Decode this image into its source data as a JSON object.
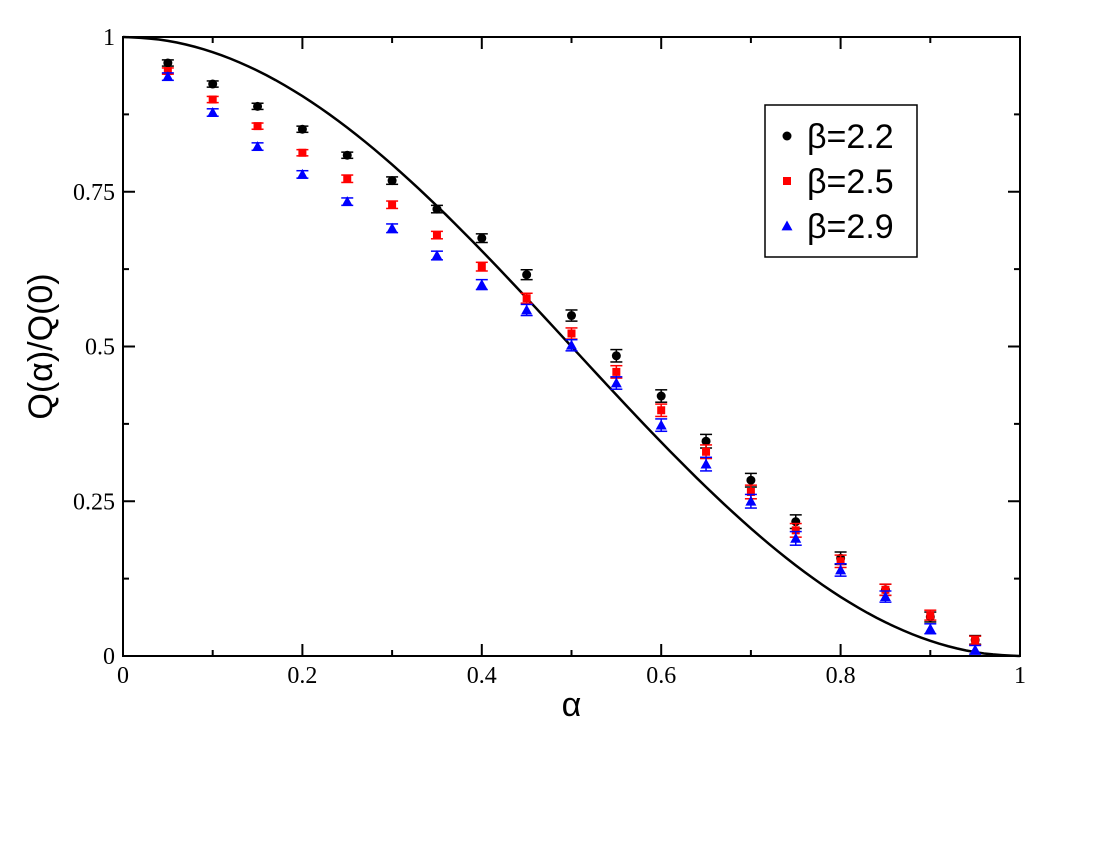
{
  "chart_data": {
    "type": "scatter",
    "xlabel": "α",
    "ylabel": "Q(α)/Q(0)",
    "xlim": [
      0,
      1
    ],
    "ylim": [
      0,
      1
    ],
    "x_ticks": [
      0,
      0.2,
      0.4,
      0.6,
      0.8,
      1
    ],
    "x_tick_labels": [
      "0",
      "0.2",
      "0.4",
      "0.6",
      "0.8",
      "1"
    ],
    "y_ticks": [
      0,
      0.25,
      0.5,
      0.75,
      1
    ],
    "y_tick_labels": [
      "0",
      "0.25",
      "0.5",
      "0.75",
      "1"
    ],
    "grid": false,
    "legend_position": "top-right",
    "x": [
      0.05,
      0.1,
      0.15,
      0.2,
      0.25,
      0.3,
      0.35,
      0.4,
      0.45,
      0.5,
      0.55,
      0.6,
      0.65,
      0.7,
      0.75,
      0.8,
      0.85,
      0.9,
      0.95
    ],
    "series": [
      {
        "name": "β=2.2",
        "marker": "circle",
        "color": "#000000",
        "values": [
          0.958,
          0.924,
          0.888,
          0.851,
          0.809,
          0.768,
          0.722,
          0.675,
          0.616,
          0.55,
          0.485,
          0.42,
          0.347,
          0.284,
          0.217,
          0.158,
          0.107,
          0.063,
          0.026
        ],
        "errors": [
          0.005,
          0.005,
          0.005,
          0.005,
          0.005,
          0.006,
          0.006,
          0.007,
          0.008,
          0.009,
          0.01,
          0.01,
          0.011,
          0.011,
          0.011,
          0.01,
          0.009,
          0.008,
          0.007
        ]
      },
      {
        "name": "β=2.5",
        "marker": "square",
        "color": "#ff0000",
        "values": [
          0.945,
          0.899,
          0.856,
          0.813,
          0.771,
          0.729,
          0.68,
          0.629,
          0.578,
          0.521,
          0.459,
          0.397,
          0.33,
          0.265,
          0.203,
          0.153,
          0.107,
          0.066,
          0.025
        ],
        "errors": [
          0.005,
          0.005,
          0.005,
          0.005,
          0.006,
          0.006,
          0.006,
          0.007,
          0.008,
          0.009,
          0.01,
          0.01,
          0.011,
          0.011,
          0.011,
          0.01,
          0.009,
          0.008,
          0.007
        ]
      },
      {
        "name": "β=2.9",
        "marker": "triangle",
        "color": "#0000ff",
        "values": [
          0.936,
          0.878,
          0.823,
          0.778,
          0.734,
          0.691,
          0.647,
          0.6,
          0.559,
          0.502,
          0.441,
          0.373,
          0.31,
          0.25,
          0.19,
          0.139,
          0.096,
          0.044,
          0.01
        ],
        "errors": [
          0.006,
          0.006,
          0.006,
          0.006,
          0.006,
          0.007,
          0.007,
          0.008,
          0.009,
          0.009,
          0.01,
          0.01,
          0.011,
          0.011,
          0.011,
          0.01,
          0.009,
          0.008,
          0.007
        ]
      }
    ],
    "curve": {
      "color": "#000000",
      "x": [
        0,
        0.05,
        0.1,
        0.15,
        0.2,
        0.25,
        0.3,
        0.35,
        0.4,
        0.45,
        0.5,
        0.55,
        0.6,
        0.65,
        0.7,
        0.75,
        0.8,
        0.85,
        0.9,
        0.95,
        1
      ],
      "y": [
        1.0,
        0.9938,
        0.9755,
        0.9455,
        0.9045,
        0.8536,
        0.7939,
        0.727,
        0.6545,
        0.5782,
        0.5,
        0.4218,
        0.3455,
        0.273,
        0.2061,
        0.1464,
        0.0955,
        0.0545,
        0.0245,
        0.0062,
        0.0
      ]
    }
  }
}
